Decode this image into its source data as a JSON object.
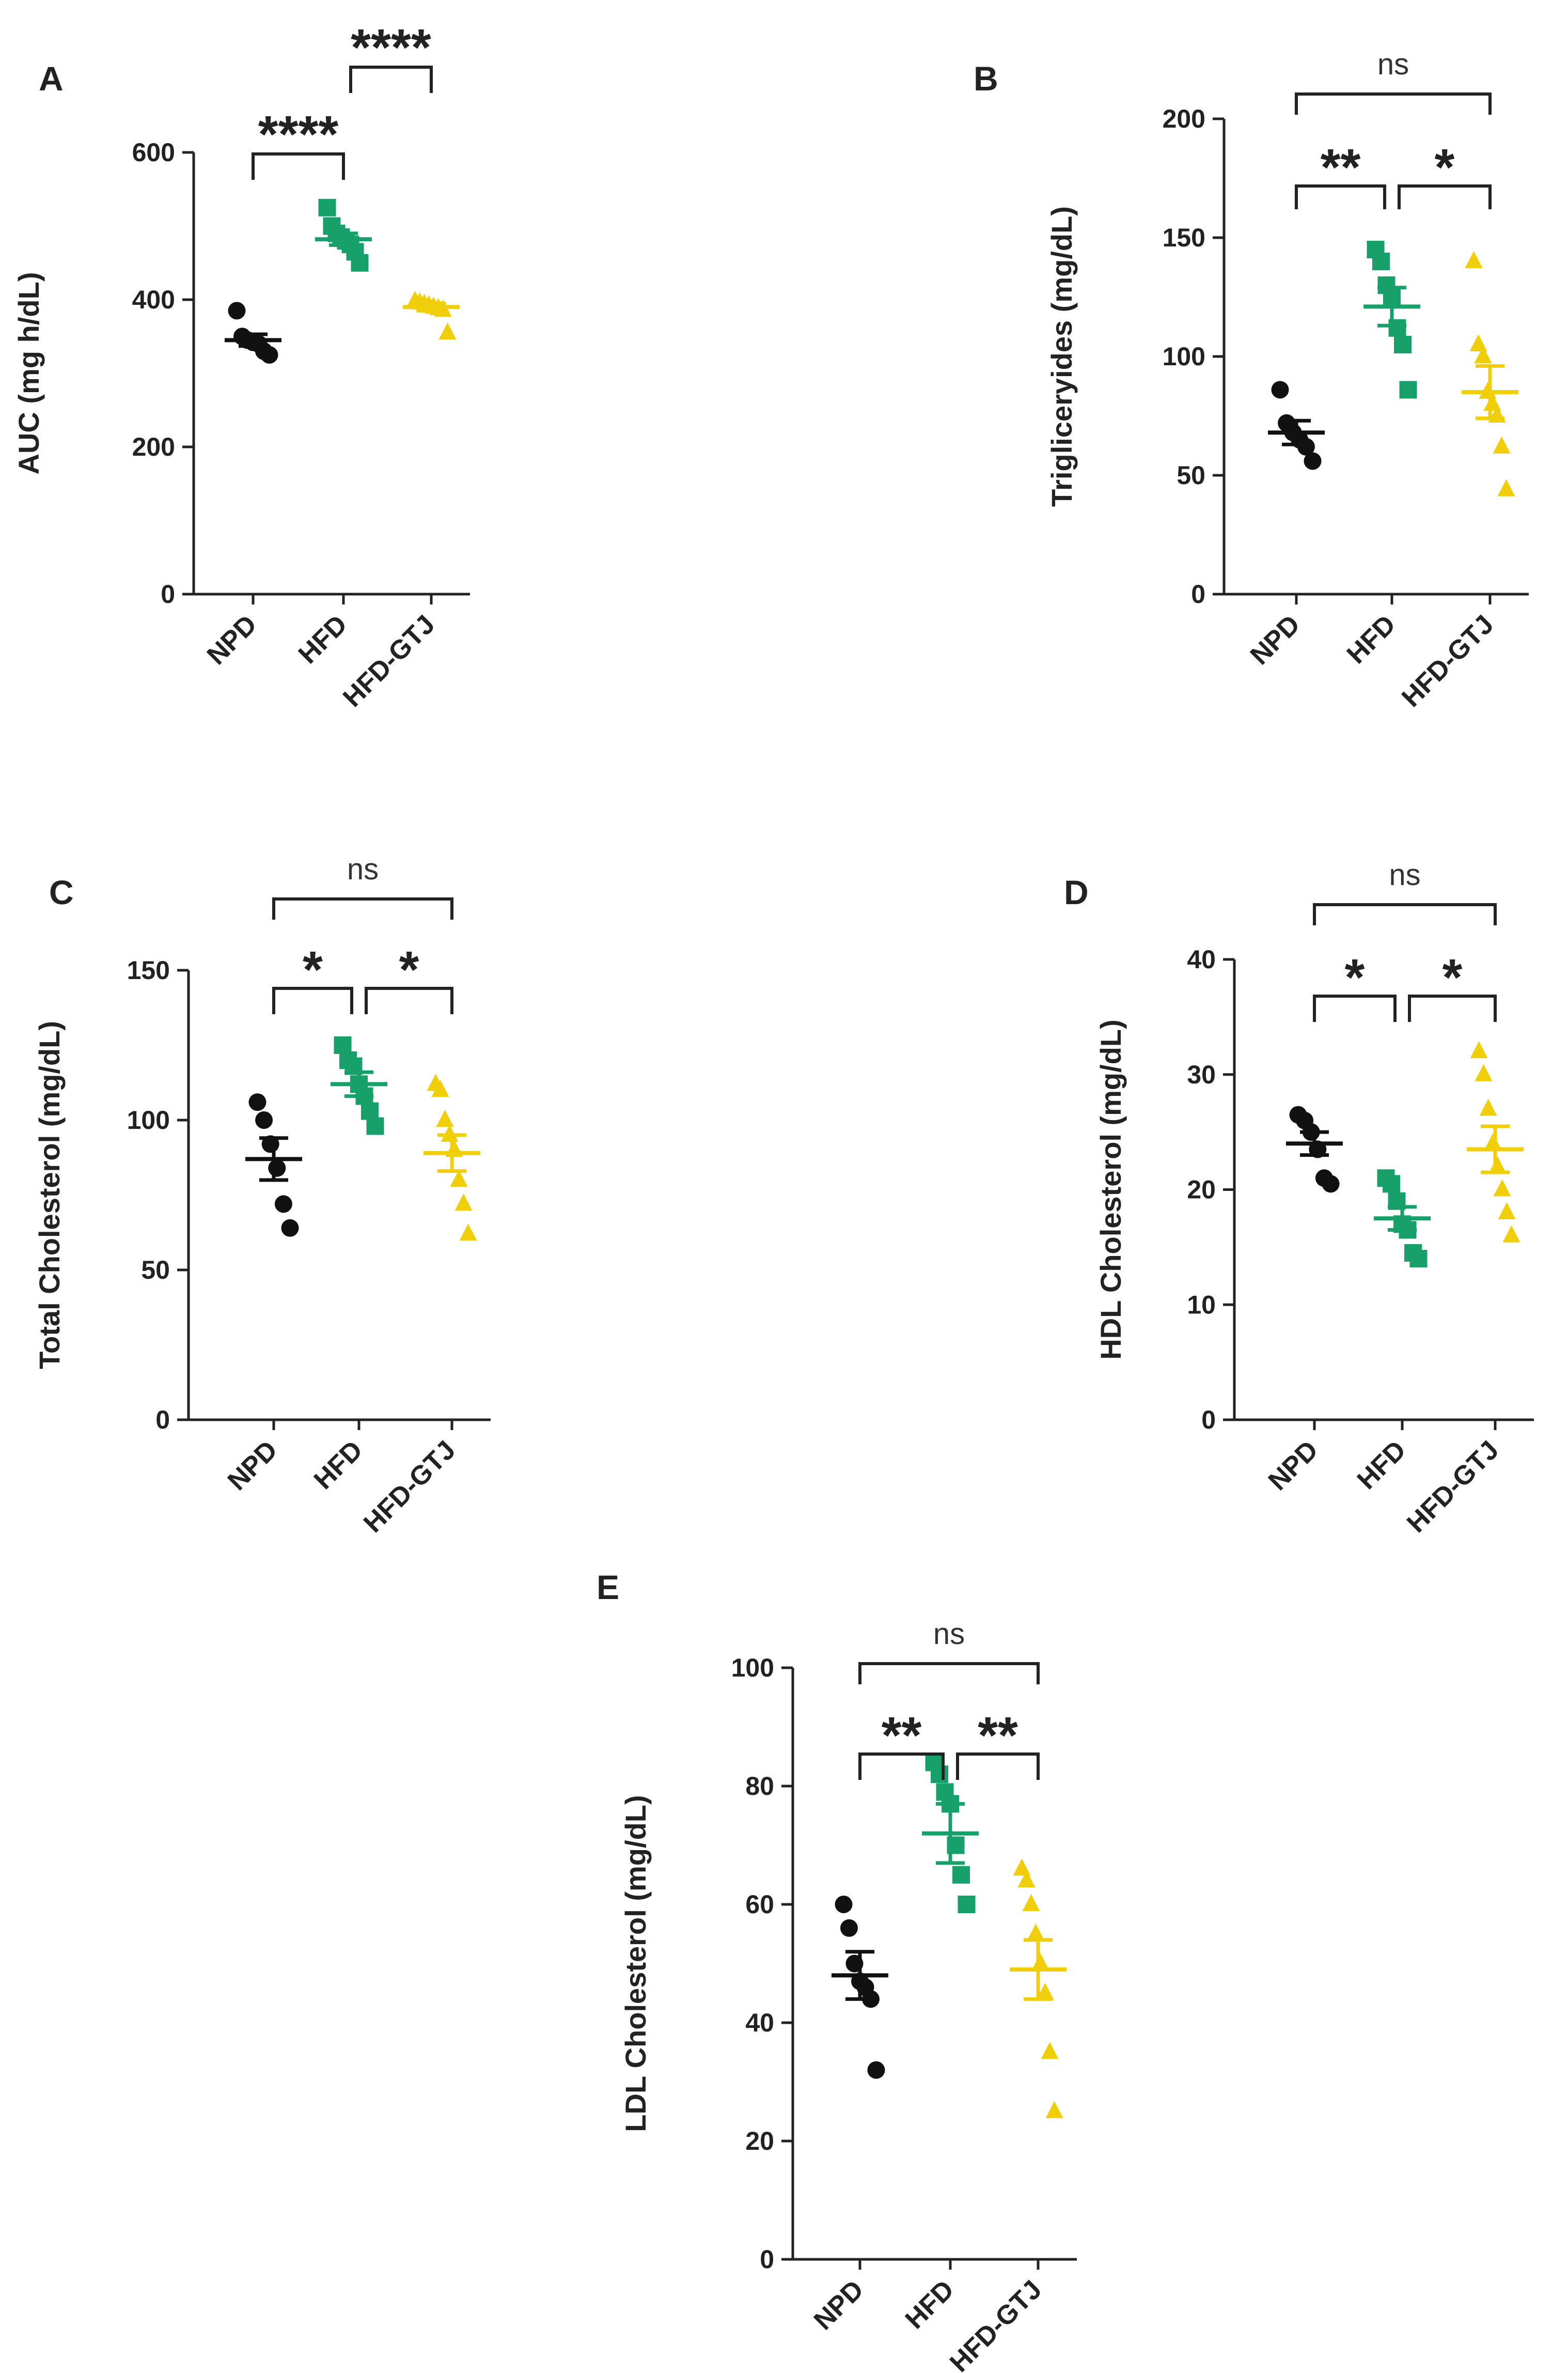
{
  "group_colors": {
    "NPD": "#111111",
    "HFD": "#17a06a",
    "HFD-GTJ": "#f0cf0a"
  },
  "chart_data": [
    {
      "panel": "A",
      "type": "scatter",
      "ylabel": "AUC  (mg h/dL)",
      "ylim": [
        0,
        600
      ],
      "yticks": [
        0,
        200,
        400,
        600
      ],
      "categories": [
        "NPD",
        "HFD",
        "HFD-GTJ"
      ],
      "markers": [
        "circle",
        "square",
        "triangle"
      ],
      "groups": [
        {
          "name": "NPD",
          "points": [
            385,
            350,
            345,
            342,
            340,
            330,
            325
          ],
          "mean": 345,
          "sem": 8
        },
        {
          "name": "HFD",
          "points": [
            525,
            500,
            490,
            485,
            480,
            475,
            465,
            450
          ],
          "mean": 482,
          "sem": 8
        },
        {
          "name": "HFD-GTJ",
          "points": [
            398,
            396,
            394,
            392,
            390,
            388,
            386,
            355
          ],
          "mean": 390,
          "sem": 5
        }
      ],
      "comparisons": [
        {
          "from": 0,
          "to": 1,
          "label": "****"
        },
        {
          "from": 1,
          "to": 2,
          "label": "****"
        }
      ]
    },
    {
      "panel": "B",
      "type": "scatter",
      "ylabel": "Trigliceryides (mg/dL)",
      "ylim": [
        0,
        200
      ],
      "yticks": [
        0,
        50,
        100,
        150,
        200
      ],
      "categories": [
        "NPD",
        "HFD",
        "HFD-GTJ"
      ],
      "markers": [
        "circle",
        "square",
        "triangle"
      ],
      "groups": [
        {
          "name": "NPD",
          "points": [
            86,
            72,
            68,
            65,
            62,
            56
          ],
          "mean": 68,
          "sem": 5
        },
        {
          "name": "HFD",
          "points": [
            145,
            140,
            130,
            125,
            112,
            105,
            86
          ],
          "mean": 121,
          "sem": 8
        },
        {
          "name": "HFD-GTJ",
          "points": [
            140,
            105,
            100,
            85,
            80,
            75,
            62,
            44
          ],
          "mean": 85,
          "sem": 11
        }
      ],
      "comparisons": [
        {
          "from": 0,
          "to": 1,
          "label": "**"
        },
        {
          "from": 1,
          "to": 2,
          "label": "*"
        },
        {
          "from": 0,
          "to": 2,
          "label": "ns"
        }
      ]
    },
    {
      "panel": "C",
      "type": "scatter",
      "ylabel": "Total Cholesterol (mg/dL)",
      "ylim": [
        0,
        150
      ],
      "yticks": [
        0,
        50,
        100,
        150
      ],
      "categories": [
        "NPD",
        "HFD",
        "HFD-GTJ"
      ],
      "markers": [
        "circle",
        "square",
        "triangle"
      ],
      "groups": [
        {
          "name": "NPD",
          "points": [
            106,
            100,
            92,
            84,
            72,
            64
          ],
          "mean": 87,
          "sem": 7
        },
        {
          "name": "HFD",
          "points": [
            125,
            120,
            118,
            112,
            108,
            103,
            98
          ],
          "mean": 112,
          "sem": 4
        },
        {
          "name": "HFD-GTJ",
          "points": [
            112,
            110,
            100,
            95,
            90,
            80,
            72,
            62
          ],
          "mean": 89,
          "sem": 6
        }
      ],
      "comparisons": [
        {
          "from": 0,
          "to": 1,
          "label": "*"
        },
        {
          "from": 1,
          "to": 2,
          "label": "*"
        },
        {
          "from": 0,
          "to": 2,
          "label": "ns"
        }
      ]
    },
    {
      "panel": "D",
      "type": "scatter",
      "ylabel": "HDL Cholesterol (mg/dL)",
      "ylim": [
        0,
        40
      ],
      "yticks": [
        0,
        10,
        20,
        30,
        40
      ],
      "categories": [
        "NPD",
        "HFD",
        "HFD-GTJ"
      ],
      "markers": [
        "circle",
        "square",
        "triangle"
      ],
      "groups": [
        {
          "name": "NPD",
          "points": [
            26.5,
            26,
            25,
            23.5,
            21,
            20.5
          ],
          "mean": 24,
          "sem": 1
        },
        {
          "name": "HFD",
          "points": [
            21,
            20.5,
            19,
            17,
            16.5,
            14.5,
            14
          ],
          "mean": 17.5,
          "sem": 1
        },
        {
          "name": "HFD-GTJ",
          "points": [
            32,
            30,
            27,
            24,
            22,
            20,
            18,
            16
          ],
          "mean": 23.5,
          "sem": 2
        }
      ],
      "comparisons": [
        {
          "from": 0,
          "to": 1,
          "label": "*"
        },
        {
          "from": 1,
          "to": 2,
          "label": "*"
        },
        {
          "from": 0,
          "to": 2,
          "label": "ns"
        }
      ]
    },
    {
      "panel": "E",
      "type": "scatter",
      "ylabel": "LDL Cholesterol (mg/dL)",
      "ylim": [
        0,
        100
      ],
      "yticks": [
        0,
        20,
        40,
        60,
        80,
        100
      ],
      "categories": [
        "NPD",
        "HFD",
        "HFD-GTJ"
      ],
      "markers": [
        "circle",
        "square",
        "triangle"
      ],
      "groups": [
        {
          "name": "NPD",
          "points": [
            60,
            56,
            50,
            47,
            46,
            44,
            32
          ],
          "mean": 48,
          "sem": 4
        },
        {
          "name": "HFD",
          "points": [
            84,
            82,
            79,
            77,
            70,
            65,
            60
          ],
          "mean": 72,
          "sem": 5
        },
        {
          "name": "HFD-GTJ",
          "points": [
            66,
            64,
            60,
            55,
            50,
            45,
            35,
            25
          ],
          "mean": 49,
          "sem": 5
        }
      ],
      "comparisons": [
        {
          "from": 0,
          "to": 1,
          "label": "**"
        },
        {
          "from": 1,
          "to": 2,
          "label": "**"
        },
        {
          "from": 0,
          "to": 2,
          "label": "ns"
        }
      ]
    }
  ]
}
